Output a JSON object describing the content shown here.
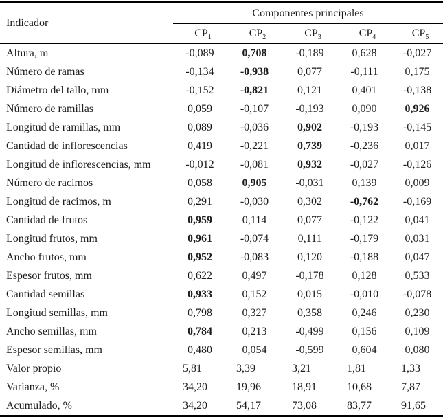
{
  "table": {
    "indicator_header": "Indicador",
    "group_header": "Componentes principales",
    "columns": [
      {
        "base": "CP",
        "sub": "1"
      },
      {
        "base": "CP",
        "sub": "2"
      },
      {
        "base": "CP",
        "sub": "3"
      },
      {
        "base": "CP",
        "sub": "4"
      },
      {
        "base": "CP",
        "sub": "5"
      }
    ],
    "rows": [
      {
        "label": "Altura, m",
        "values": [
          "-0,089",
          "0,708",
          "-0,189",
          "0,628",
          "-0,027"
        ],
        "bold": [
          false,
          true,
          false,
          false,
          false
        ]
      },
      {
        "label": "Número de ramas",
        "values": [
          "-0,134",
          "-0,938",
          "0,077",
          "-0,111",
          "0,175"
        ],
        "bold": [
          false,
          true,
          false,
          false,
          false
        ]
      },
      {
        "label": "Diámetro del tallo, mm",
        "values": [
          "-0,152",
          "-0,821",
          "0,121",
          "0,401",
          "-0,138"
        ],
        "bold": [
          false,
          true,
          false,
          false,
          false
        ]
      },
      {
        "label": "Número de ramillas",
        "values": [
          "0,059",
          "-0,107",
          "-0,193",
          "0,090",
          "0,926"
        ],
        "bold": [
          false,
          false,
          false,
          false,
          true
        ]
      },
      {
        "label": "Longitud de ramillas, mm",
        "values": [
          "0,089",
          "-0,036",
          "0,902",
          "-0,193",
          "-0,145"
        ],
        "bold": [
          false,
          false,
          true,
          false,
          false
        ]
      },
      {
        "label": "Cantidad de inflorescencias",
        "values": [
          "0,419",
          "-0,221",
          "0,739",
          "-0,236",
          "0,017"
        ],
        "bold": [
          false,
          false,
          true,
          false,
          false
        ]
      },
      {
        "label": "Longitud de inflorescencias, mm",
        "values": [
          "-0,012",
          "-0,081",
          "0,932",
          "-0,027",
          "-0,126"
        ],
        "bold": [
          false,
          false,
          true,
          false,
          false
        ]
      },
      {
        "label": "Número de racimos",
        "values": [
          "0,058",
          "0,905",
          "-0,031",
          "0,139",
          "0,009"
        ],
        "bold": [
          false,
          true,
          false,
          false,
          false
        ]
      },
      {
        "label": "Longitud de racimos, m",
        "values": [
          "0,291",
          "-0,030",
          "0,302",
          "-0,762",
          "-0,169"
        ],
        "bold": [
          false,
          false,
          false,
          true,
          false
        ]
      },
      {
        "label": "Cantidad de frutos",
        "values": [
          "0,959",
          "0,114",
          "0,077",
          "-0,122",
          "0,041"
        ],
        "bold": [
          true,
          false,
          false,
          false,
          false
        ]
      },
      {
        "label": "Longitud frutos, mm",
        "values": [
          "0,961",
          "-0,074",
          "0,111",
          "-0,179",
          "0,031"
        ],
        "bold": [
          true,
          false,
          false,
          false,
          false
        ]
      },
      {
        "label": "Ancho frutos, mm",
        "values": [
          "0,952",
          "-0,083",
          "0,120",
          "-0,188",
          "0,047"
        ],
        "bold": [
          true,
          false,
          false,
          false,
          false
        ]
      },
      {
        "label": "Espesor frutos, mm",
        "values": [
          "0,622",
          "0,497",
          "-0,178",
          "0,128",
          "0,533"
        ],
        "bold": [
          false,
          false,
          false,
          false,
          false
        ]
      },
      {
        "label": "Cantidad semillas",
        "values": [
          "0,933",
          "0,152",
          "0,015",
          "-0,010",
          "-0,078"
        ],
        "bold": [
          true,
          false,
          false,
          false,
          false
        ]
      },
      {
        "label": "Longitud semillas, mm",
        "values": [
          "0,798",
          "0,327",
          "0,358",
          "0,246",
          "0,230"
        ],
        "bold": [
          false,
          false,
          false,
          false,
          false
        ]
      },
      {
        "label": "Ancho semillas, mm",
        "values": [
          "0,784",
          "0,213",
          "-0,499",
          "0,156",
          "0,109"
        ],
        "bold": [
          true,
          false,
          false,
          false,
          false
        ]
      },
      {
        "label": "Espesor semillas, mm",
        "values": [
          "0,480",
          "0,054",
          "-0,599",
          "0,604",
          "0,080"
        ],
        "bold": [
          false,
          false,
          false,
          false,
          false
        ]
      },
      {
        "label": "Valor propio",
        "values": [
          "5,81",
          "3,39",
          "3,21",
          "1,81",
          "1,33"
        ],
        "bold": [
          false,
          false,
          false,
          false,
          false
        ],
        "summary": true
      },
      {
        "label": "Varianza, %",
        "values": [
          "34,20",
          "19,96",
          "18,91",
          "10,68",
          "7,87"
        ],
        "bold": [
          false,
          false,
          false,
          false,
          false
        ],
        "summary": true
      },
      {
        "label": "Acumulado, %",
        "values": [
          "34,20",
          "54,17",
          "73,08",
          "83,77",
          "91,65"
        ],
        "bold": [
          false,
          false,
          false,
          false,
          false
        ],
        "summary": true
      }
    ]
  }
}
